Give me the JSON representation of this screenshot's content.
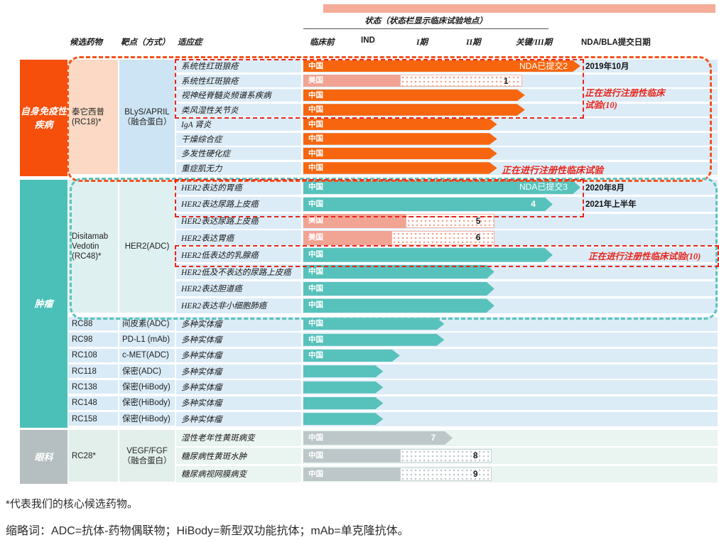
{
  "header": {
    "status_title": "状态（状态栏显示临床试验地点）",
    "col_drug": "候选药物",
    "col_target": "靶点（方式）",
    "col_indication": "适应症",
    "phases": [
      "临床前",
      "IND",
      "I期",
      "II期",
      "关键/III期"
    ],
    "col_date": "NDA/BLA提交日期"
  },
  "palette": {
    "orange": "#F7660E",
    "orange_block": "#F64F0B",
    "peach_cell": "#FBD9C4",
    "blue_cell": "#CDE4F4",
    "row_blue": "#DCECF7",
    "teal": "#57C2BB",
    "teal_block": "#4AC0B8",
    "teal_cell": "#DFF0F0",
    "single_cell": "#D9EBF6",
    "salmon": "#F1A493",
    "gray": "#BDC7C9",
    "gray_block": "#B5BEC0",
    "mint_cell": "#E3EFEB",
    "row_mint": "#EAF4F1",
    "red_dash": "#E8251C",
    "orange_dash": "#F4521C",
    "teal_dash": "#5AC3BC"
  },
  "sections": [
    {
      "id": "autoimmune",
      "category": "自身免疫性疾病",
      "block_color": "#F64F0B",
      "groups": [
        {
          "id": "rc18",
          "drug": "泰它西普 (RC18)*",
          "target": "BLyS/APRIL（融合蛋白）",
          "drug_bg": "#FBD9C4",
          "target_bg": "#CDE4F4",
          "row_bg": "#DCECF7",
          "rows": [
            {
              "indication": "系统性红斑狼疮",
              "region": "中国",
              "bar": {
                "color": "orange",
                "end": 5,
                "arrow": true,
                "end_label": "NDA已提交2"
              },
              "date": "2019年10月"
            },
            {
              "indication": "系统性红斑狼疮",
              "region": "美国",
              "bar": {
                "color": "salmon",
                "end": 1.75,
                "dot_end": 3.95,
                "num": "1",
                "num_style": "dark"
              }
            },
            {
              "indication": "视神经脊髓炎频谱系疾病",
              "region": "中国",
              "bar": {
                "color": "orange",
                "end": 4,
                "arrow": true
              }
            },
            {
              "indication": "类风湿性关节炎",
              "region": "中国",
              "bar": {
                "color": "orange",
                "end": 4,
                "arrow": true
              }
            },
            {
              "indication": "IgA 肾炎",
              "region": "中国",
              "bar": {
                "color": "orange",
                "end": 3.5,
                "arrow": true
              }
            },
            {
              "indication": "干燥综合症",
              "region": "中国",
              "bar": {
                "color": "orange",
                "end": 3.5,
                "arrow": true
              }
            },
            {
              "indication": "多发性硬化症",
              "region": "中国",
              "bar": {
                "color": "orange",
                "end": 3.5,
                "arrow": true
              }
            },
            {
              "indication": "重症肌无力",
              "region": "中国",
              "bar": {
                "color": "orange",
                "end": 3.5,
                "arrow": true
              }
            }
          ]
        }
      ]
    },
    {
      "id": "oncology",
      "category": "肿瘤",
      "block_color": "#4AC0B8",
      "groups": [
        {
          "id": "rc48",
          "drug": "Disitamab Vedotin (RC48)*",
          "target": "HER2(ADC)",
          "drug_bg": "#DFF0F0",
          "target_bg": "#DFF0F0",
          "row_bg": "#DCECF7",
          "rows": [
            {
              "indication": "HER2表达的胃癌",
              "region": "中国",
              "bar": {
                "color": "teal",
                "end": 5,
                "arrow": true,
                "end_label": "NDA已提交3"
              },
              "date": "2020年8月"
            },
            {
              "indication": "HER2表达尿路上皮癌",
              "region": "中国",
              "bar": {
                "color": "teal",
                "end": 4.5,
                "arrow": true,
                "num": "4",
                "num_style": "light"
              },
              "date": "2021年上半年"
            },
            {
              "indication": "HER2表达尿路上皮癌",
              "region": "美国",
              "bar": {
                "color": "salmon",
                "end": 1.85,
                "dot_end": 3.45,
                "num": "5",
                "num_style": "dark"
              }
            },
            {
              "indication": "HER2表达胃癌",
              "region": "美国",
              "bar": {
                "color": "salmon",
                "end": 1.6,
                "dot_end": 3.45,
                "num": "6",
                "num_style": "dark"
              }
            },
            {
              "indication": "HER2低表达的乳腺癌",
              "region": "中国",
              "bar": {
                "color": "teal",
                "end": 4.5,
                "arrow": true
              }
            },
            {
              "indication": "HER2低及不表达的尿路上皮癌",
              "region": "中国",
              "bar": {
                "color": "teal",
                "end": 3.45,
                "arrow": true
              }
            },
            {
              "indication": "HER2表达胆道癌",
              "region": "中国",
              "bar": {
                "color": "teal",
                "end": 3.45,
                "arrow": true
              }
            },
            {
              "indication": "HER2表达非小细胞肺癌",
              "region": "中国",
              "bar": {
                "color": "teal",
                "end": 3.45,
                "arrow": true
              }
            }
          ]
        },
        {
          "id": "rc88",
          "drug": "RC88",
          "target": "间皮素(ADC)",
          "rows": [
            {
              "indication": "多种实体瘤",
              "region": "中国",
              "bar": {
                "color": "teal",
                "end": 2.55,
                "arrow": true
              }
            }
          ]
        },
        {
          "id": "rc98",
          "drug": "RC98",
          "target": "PD-L1 (mAb)",
          "rows": [
            {
              "indication": "多种实体瘤",
              "region": "中国",
              "bar": {
                "color": "teal",
                "end": 2.55,
                "arrow": true
              }
            }
          ]
        },
        {
          "id": "rc108",
          "drug": "RC108",
          "target": "c-MET(ADC)",
          "rows": [
            {
              "indication": "多种实体瘤",
              "region": "中国",
              "bar": {
                "color": "teal",
                "end": 1.75,
                "arrow": true
              }
            }
          ]
        },
        {
          "id": "rc118",
          "drug": "RC118",
          "target": "保密(ADC)",
          "rows": [
            {
              "indication": "多种实体瘤",
              "bar": {
                "color": "teal",
                "end": 1.45,
                "arrow": true
              }
            }
          ]
        },
        {
          "id": "rc138",
          "drug": "RC138",
          "target": "保密(HiBody)",
          "rows": [
            {
              "indication": "多种实体瘤",
              "bar": {
                "color": "teal",
                "end": 1.45,
                "arrow": true
              }
            }
          ]
        },
        {
          "id": "rc148",
          "drug": "RC148",
          "target": "保密(HiBody)",
          "rows": [
            {
              "indication": "多种实体瘤",
              "bar": {
                "color": "teal",
                "end": 1.45,
                "arrow": true
              }
            }
          ]
        },
        {
          "id": "rc158",
          "drug": "RC158",
          "target": "保密(HiBody)",
          "rows": [
            {
              "indication": "多种实体瘤",
              "bar": {
                "color": "teal",
                "end": 1.45,
                "arrow": true
              }
            }
          ]
        }
      ]
    },
    {
      "id": "eye",
      "category": "眼科",
      "block_color": "#B5BEC0",
      "groups": [
        {
          "id": "rc28",
          "drug": "RC28*",
          "target": "VEGF/FGF（融合蛋白）",
          "drug_bg": "#E3EFEB",
          "target_bg": "#E3EFEB",
          "row_bg": "#EAF4F1",
          "rows": [
            {
              "indication": "湿性老年性黄斑病变",
              "region": "中国",
              "bar": {
                "color": "gray",
                "end": 2.7,
                "arrow": true,
                "num": "7",
                "num_style": "light"
              }
            },
            {
              "indication": "糖尿病性黄斑水肿",
              "region": "中国",
              "bar": {
                "color": "gray",
                "end": 1.75,
                "dot_end": 3.4,
                "num": "8",
                "num_style": "dark"
              }
            },
            {
              "indication": "糖尿病视网膜病变",
              "region": "中国",
              "bar": {
                "color": "gray",
                "end": 1.75,
                "dot_end": 3.4,
                "num": "9",
                "num_style": "dark"
              }
            }
          ]
        }
      ]
    }
  ],
  "annotations": {
    "reg_trials_multiline": "正在进行注册性临床试验(10)",
    "reg_trials_row8": "正在进行注册性临床试验",
    "reg_trials_breast": "正在进行注册性临床试验(10)"
  },
  "footnotes": {
    "line1": "*代表我们的核心候选药物。",
    "line2": "缩略词：ADC=抗体-药物偶联物；HiBody=新型双功能抗体；mAb=单克隆抗体。"
  }
}
